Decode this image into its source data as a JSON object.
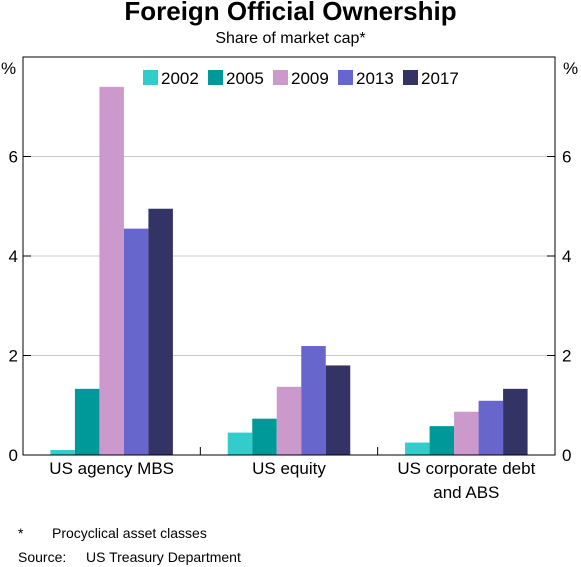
{
  "header": {
    "title": "Foreign Official Ownership",
    "subtitle": "Share of market cap*"
  },
  "footnotes": {
    "note_marker": "*",
    "note_text": "Procyclical asset classes",
    "source_label": "Source:",
    "source_text": "US Treasury Department"
  },
  "chart_data": {
    "type": "bar",
    "title": "Foreign Official Ownership",
    "subtitle": "Share of market cap*",
    "unit_left": "%",
    "unit_right": "%",
    "categories": [
      [
        "US agency MBS"
      ],
      [
        "US equity"
      ],
      [
        "US corporate debt",
        "and ABS"
      ]
    ],
    "series": [
      {
        "name": "2002",
        "color": "#33cccc",
        "values": [
          0.1,
          0.45,
          0.25
        ]
      },
      {
        "name": "2005",
        "color": "#009999",
        "values": [
          1.33,
          0.73,
          0.58
        ]
      },
      {
        "name": "2009",
        "color": "#cc99cc",
        "values": [
          7.4,
          1.37,
          0.87
        ]
      },
      {
        "name": "2013",
        "color": "#6666cc",
        "values": [
          4.55,
          2.19,
          1.09
        ]
      },
      {
        "name": "2017",
        "color": "#333366",
        "values": [
          4.95,
          1.8,
          1.33
        ]
      }
    ],
    "ylim": [
      0,
      8
    ],
    "yticks": [
      0,
      2,
      4,
      6
    ],
    "grid": true,
    "legend_position": "top"
  }
}
